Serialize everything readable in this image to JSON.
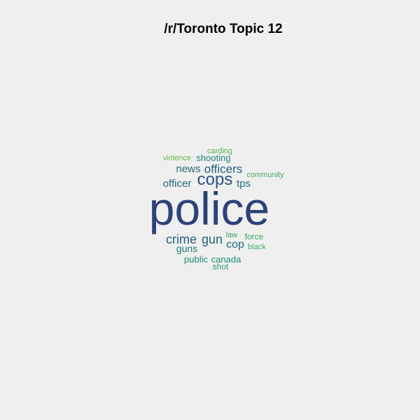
{
  "title": "/r/Toronto Topic 12",
  "chart_data": {
    "type": "wordcloud",
    "title": "/r/Toronto Topic 12",
    "words": [
      {
        "text": "police",
        "rank": 1,
        "color": "#2c4279"
      },
      {
        "text": "cops",
        "rank": 2,
        "color": "#2b5383"
      },
      {
        "text": "officers",
        "rank": 3,
        "color": "#25617f"
      },
      {
        "text": "crime",
        "rank": 4,
        "color": "#25617f"
      },
      {
        "text": "gun",
        "rank": 5,
        "color": "#25617f"
      },
      {
        "text": "news",
        "rank": 6,
        "color": "#26697d"
      },
      {
        "text": "officer",
        "rank": 7,
        "color": "#26697d"
      },
      {
        "text": "cop",
        "rank": 8,
        "color": "#226f7d"
      },
      {
        "text": "tps",
        "rank": 9,
        "color": "#226f7d"
      },
      {
        "text": "guns",
        "rank": 10,
        "color": "#21777b"
      },
      {
        "text": "shooting",
        "rank": 11,
        "color": "#1f867a"
      },
      {
        "text": "public",
        "rank": 12,
        "color": "#1d8a78"
      },
      {
        "text": "canada",
        "rank": 13,
        "color": "#1d9076"
      },
      {
        "text": "shot",
        "rank": 14,
        "color": "#25986f"
      },
      {
        "text": "law",
        "rank": 15,
        "color": "#3aa464"
      },
      {
        "text": "force",
        "rank": 16,
        "color": "#3aa464"
      },
      {
        "text": "community",
        "rank": 17,
        "color": "#45ab5f"
      },
      {
        "text": "black",
        "rank": 18,
        "color": "#45ab5f"
      },
      {
        "text": "carding",
        "rank": 19,
        "color": "#55b354"
      },
      {
        "text": "violence",
        "rank": 20,
        "color": "#6ab94a"
      }
    ]
  }
}
